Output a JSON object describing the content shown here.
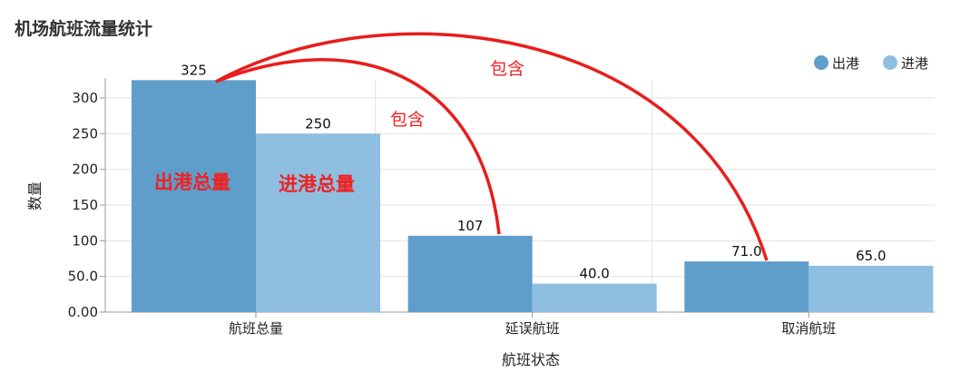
{
  "colors": {
    "departure": "#5f9dcb",
    "arrival": "#8fbfe0",
    "annotation": "#e81d1d",
    "grid": "#e2e2e2",
    "axis": "#999999"
  },
  "annotations": {
    "departure_total": "出港总量",
    "arrival_total": "进港总量",
    "contains_upper": "包含",
    "contains_lower": "包含"
  },
  "chart_data": {
    "type": "bar",
    "title": "机场航班流量统计",
    "xlabel": "航班状态",
    "ylabel": "数量",
    "categories": [
      "航班总量",
      "延误航班",
      "取消航班"
    ],
    "series": [
      {
        "name": "出港",
        "values": [
          325,
          107,
          71
        ],
        "labels": [
          "325",
          "107",
          "71.0"
        ]
      },
      {
        "name": "进港",
        "values": [
          250,
          40,
          65
        ],
        "labels": [
          "250",
          "40.0",
          "65.0"
        ]
      }
    ],
    "yticks": [
      "0.00",
      "50.0",
      "100",
      "150",
      "200",
      "250",
      "300"
    ],
    "ylim": [
      0,
      330
    ],
    "grid": true,
    "legend": "top-right"
  }
}
